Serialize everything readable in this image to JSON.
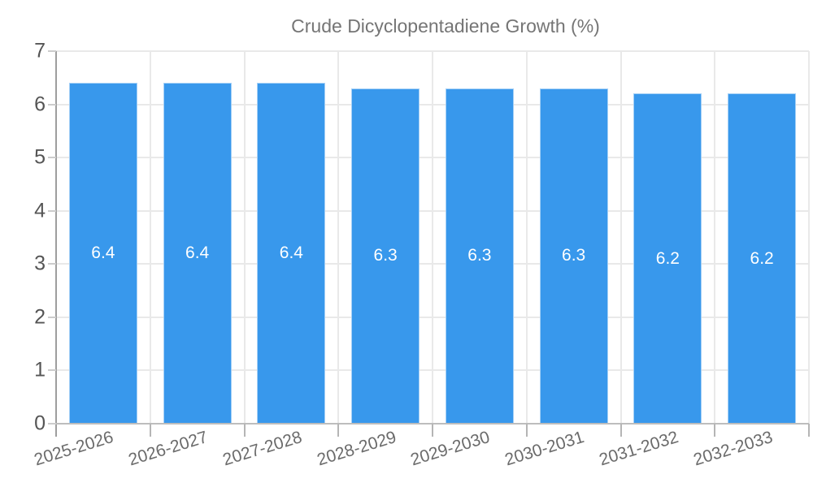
{
  "chart_data": {
    "type": "bar",
    "title": "Crude Dicyclopentadiene Growth (%)",
    "categories": [
      "2025-2026",
      "2026-2027",
      "2027-2028",
      "2028-2029",
      "2029-2030",
      "2030-2031",
      "2031-2032",
      "2032-2033"
    ],
    "values": [
      6.4,
      6.4,
      6.4,
      6.3,
      6.3,
      6.3,
      6.2,
      6.2
    ],
    "value_labels": [
      "6.4",
      "6.4",
      "6.4",
      "6.3",
      "6.3",
      "6.3",
      "6.2",
      "6.2"
    ],
    "xlabel": "",
    "ylabel": "",
    "ylim": [
      0,
      7
    ],
    "y_ticks": [
      "0",
      "1",
      "2",
      "3",
      "4",
      "5",
      "6",
      "7"
    ],
    "grid": true,
    "legend_position": "top",
    "colors": {
      "bar": "#3898EC",
      "bar_label": "#ffffff",
      "grid": "#e9e9e9",
      "axis": "#9e9e9e",
      "y_tick_label": "#555555",
      "x_tick_label": "#6b6b6b",
      "legend_text": "#757575",
      "background": "#ffffff"
    }
  }
}
